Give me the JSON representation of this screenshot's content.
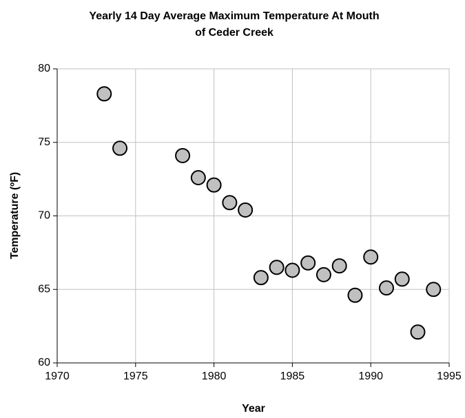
{
  "chart_data": {
    "type": "scatter",
    "title": [
      "Yearly 14 Day Average Maximum Temperature At Mouth",
      "of Ceder Creek"
    ],
    "x_label": "Year",
    "y_label": "Temperature (ºF)",
    "x": [
      1973,
      1974,
      1978,
      1979,
      1980,
      1981,
      1982,
      1983,
      1984,
      1985,
      1986,
      1987,
      1988,
      1989,
      1990,
      1991,
      1992,
      1993,
      1994
    ],
    "values": [
      78.3,
      74.6,
      74.1,
      72.6,
      72.1,
      70.9,
      70.4,
      65.8,
      66.5,
      66.3,
      66.8,
      66.0,
      66.6,
      64.6,
      67.2,
      65.1,
      65.7,
      62.1,
      65.0
    ],
    "color": "#c0c0c0",
    "xlim": [
      1970,
      1995
    ],
    "xticks": [
      1970,
      1975,
      1980,
      1985,
      1990,
      1995
    ],
    "ylim": [
      60,
      80
    ],
    "yticks": [
      60,
      65,
      70,
      75,
      80
    ],
    "grid": true
  }
}
